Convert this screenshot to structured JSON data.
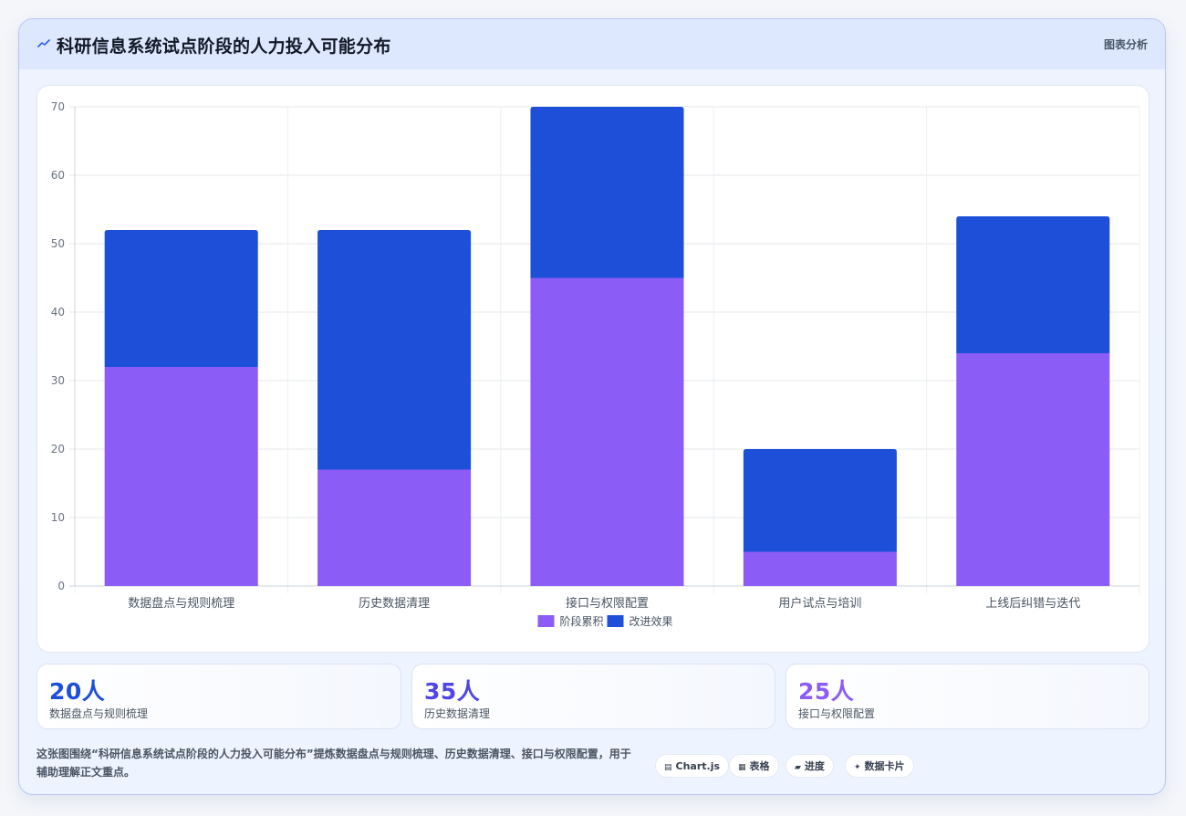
{
  "header": {
    "title": "科研信息系统试点阶段的人力投入可能分布",
    "tag": "图表分析",
    "icon": "trend-line-icon"
  },
  "chart_data": {
    "type": "bar",
    "stacked": true,
    "categories": [
      "数据盘点与规则梳理",
      "历史数据清理",
      "接口与权限配置",
      "用户试点与培训",
      "上线后纠错与迭代"
    ],
    "series": [
      {
        "name": "阶段累积",
        "values": [
          32,
          17,
          45,
          5,
          34
        ],
        "color": "#8b5cf6"
      },
      {
        "name": "改进效果",
        "values": [
          20,
          35,
          25,
          15,
          20
        ],
        "color": "#1d4fd8"
      }
    ],
    "ylim": [
      0,
      70
    ],
    "yticks": [
      0,
      10,
      20,
      30,
      40,
      50,
      60,
      70
    ],
    "grid": true,
    "legend_position": "bottom"
  },
  "kpis": [
    {
      "value": "20人",
      "label": "数据盘点与规则梳理",
      "color": "#1d4fd8"
    },
    {
      "value": "35人",
      "label": "历史数据清理",
      "color": "#4f46e5"
    },
    {
      "value": "25人",
      "label": "接口与权限配置",
      "color": "#8b5cf6"
    }
  ],
  "footer": {
    "note": "这张图围绕“科研信息系统试点阶段的人力投入可能分布”提炼数据盘点与规则梳理、历史数据清理、接口与权限配置，用于辅助理解正文重点。",
    "chips": [
      {
        "label": "Chart.js",
        "icon": "chart-icon",
        "glyph": "▤"
      },
      {
        "label": "表格",
        "icon": "table-icon",
        "glyph": "▦"
      },
      {
        "label": "进度",
        "icon": "progress-icon",
        "glyph": "▰"
      },
      {
        "label": "数据卡片",
        "icon": "sparkle-icon",
        "glyph": "✦"
      }
    ]
  }
}
